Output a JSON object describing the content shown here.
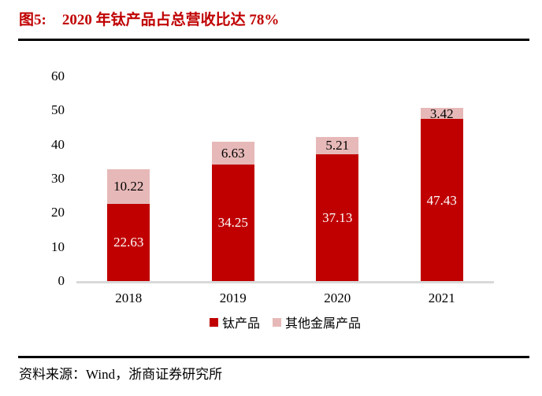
{
  "figure": {
    "label": "图5:",
    "title": "2020 年钛产品占总营收比达 78%"
  },
  "chart_data": {
    "type": "bar",
    "stacked": true,
    "title": "2020 年钛产品占总营收比达 78%",
    "categories": [
      "2018",
      "2019",
      "2020",
      "2021"
    ],
    "series": [
      {
        "name": "钛产品",
        "values": [
          22.63,
          34.25,
          37.13,
          47.43
        ],
        "color": "#c00000",
        "label_color": "#ffffff"
      },
      {
        "name": "其他金属产品",
        "values": [
          10.22,
          6.63,
          5.21,
          3.42
        ],
        "color": "#e6b9b8",
        "label_color": "#000000"
      }
    ],
    "xlabel": "",
    "ylabel": "",
    "ylim": [
      0,
      60
    ],
    "yticks": [
      0,
      10,
      20,
      30,
      40,
      50,
      60
    ],
    "grid": false,
    "legend_position": "bottom"
  },
  "footer": {
    "source": "资料来源：Wind，浙商证券研究所"
  },
  "colors": {
    "accent_red": "#c00000",
    "light_pink": "#e6b9b8",
    "axis_line": "#d9d9d9",
    "rule": "#000000"
  }
}
